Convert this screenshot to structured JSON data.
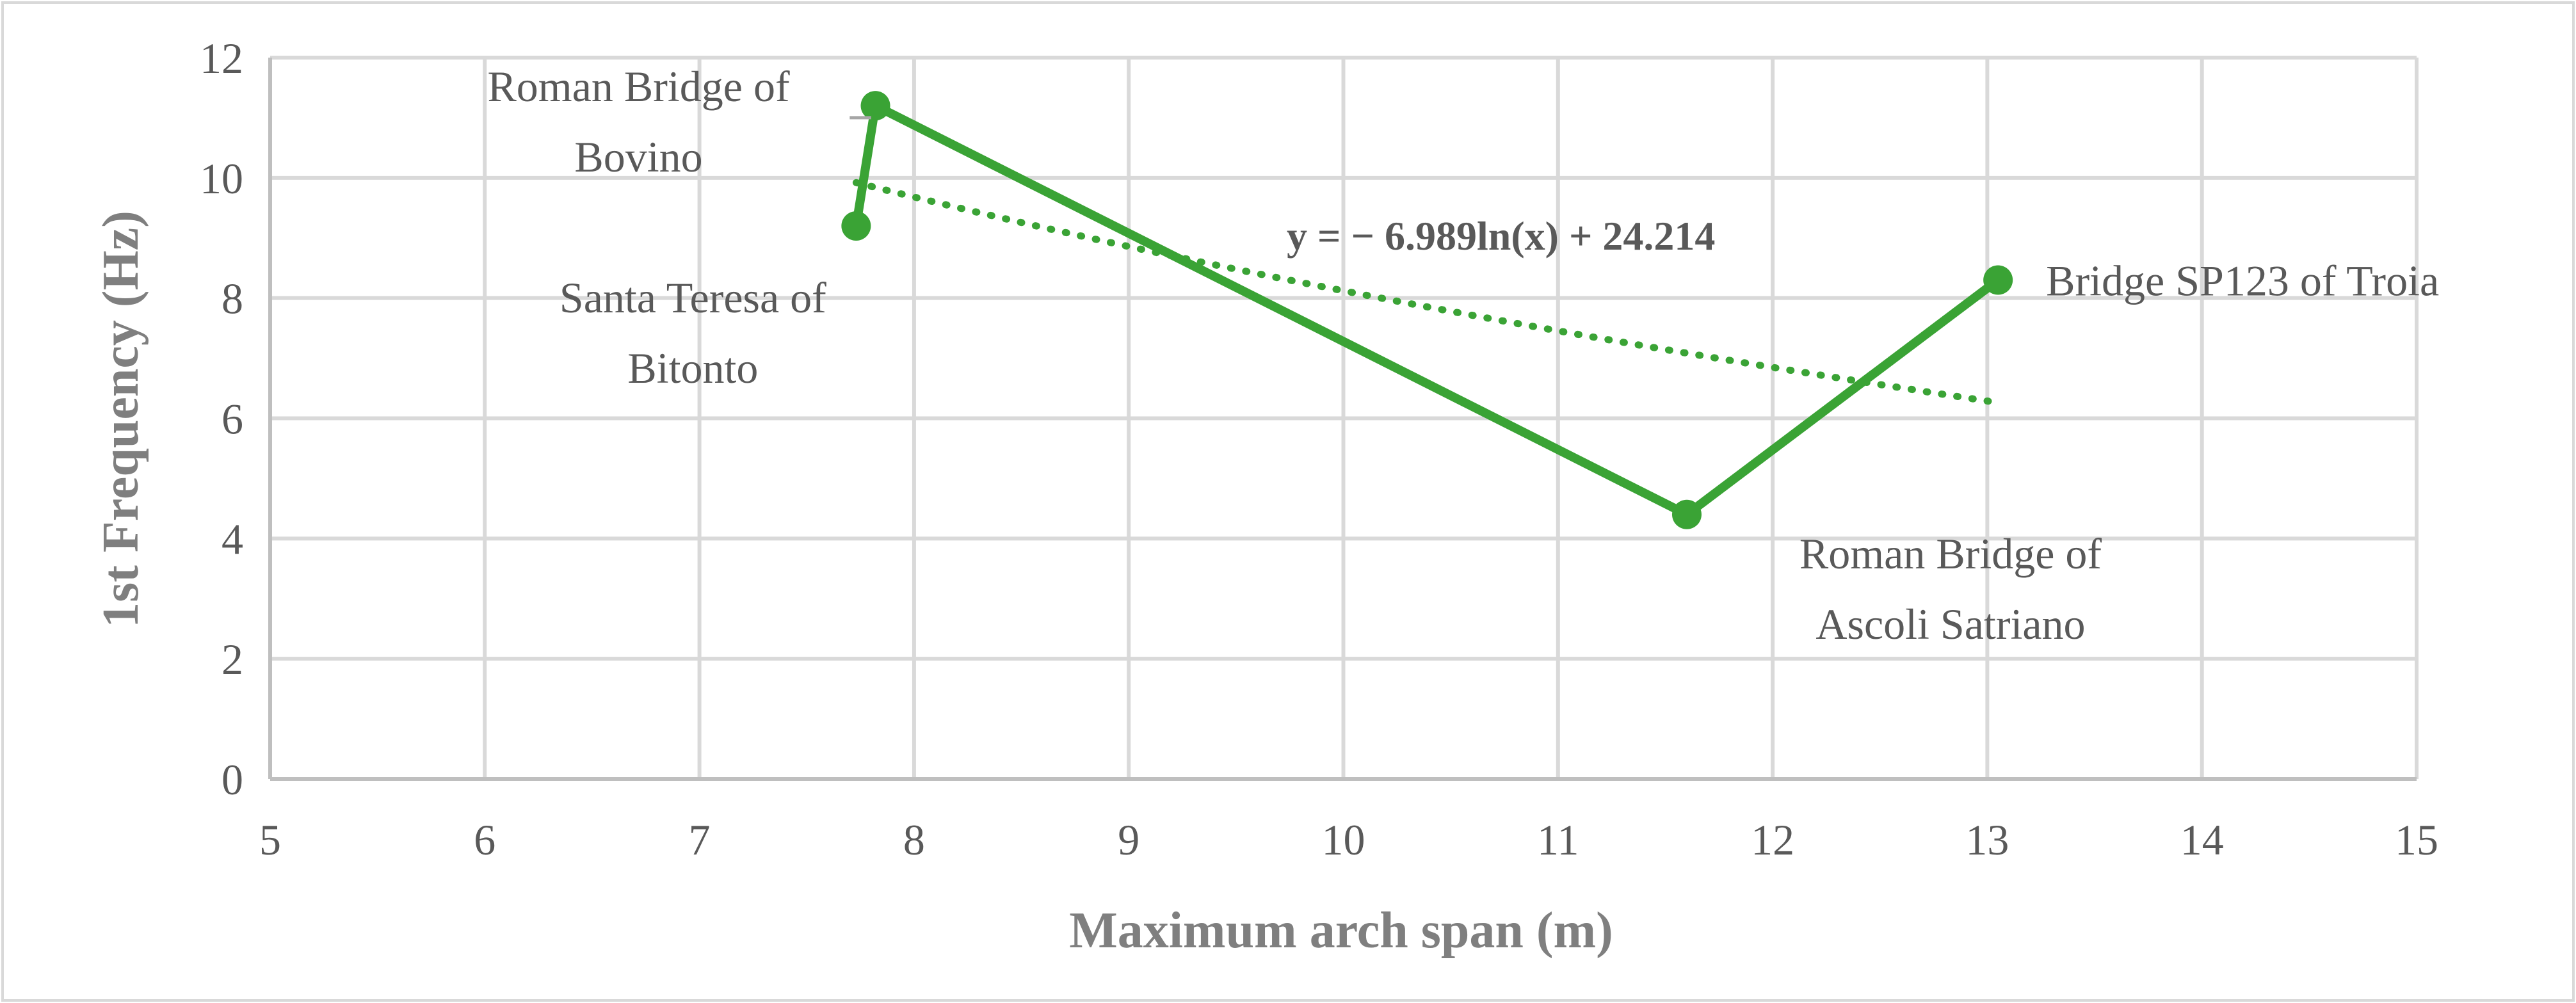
{
  "chart_data": {
    "type": "line",
    "title": "",
    "xlabel": "Maximum arch span (m)",
    "ylabel": "1st Frequency (Hz)",
    "xlim": [
      5,
      15
    ],
    "ylim": [
      0,
      12
    ],
    "x_ticks": [
      5,
      6,
      7,
      8,
      9,
      10,
      11,
      12,
      13,
      14,
      15
    ],
    "y_ticks": [
      0,
      2,
      4,
      6,
      8,
      10,
      12
    ],
    "grid": true,
    "legend": "none",
    "series": [
      {
        "points": [
          {
            "x": 7.73,
            "y": 9.2,
            "label": [
              "Santa Teresa of",
              "Bitonto"
            ]
          },
          {
            "x": 7.82,
            "y": 11.2,
            "label": [
              "Roman Bridge of",
              "Bovino"
            ]
          },
          {
            "x": 11.6,
            "y": 4.4,
            "label": [
              "Roman Bridge of",
              "Ascoli Satriano"
            ]
          },
          {
            "x": 13.05,
            "y": 8.3,
            "label": [
              "Bridge SP123 of Troia"
            ]
          }
        ],
        "color": "#3aa335"
      }
    ],
    "trendline": {
      "type": "logarithmic",
      "a": -6.989,
      "b": 24.214,
      "x_range": [
        7.73,
        13.05
      ],
      "equation": "y = − 6.989ln(x) + 24.214",
      "style": "dotted"
    }
  }
}
